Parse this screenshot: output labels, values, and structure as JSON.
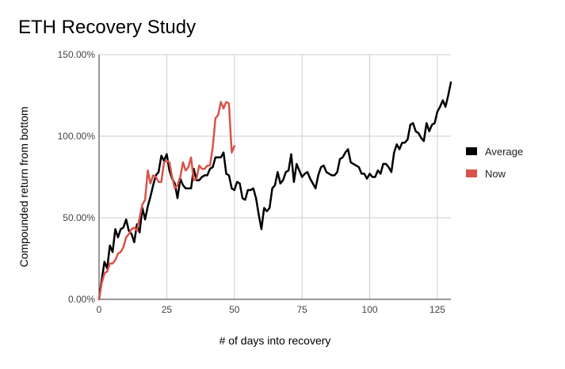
{
  "chart_data": {
    "type": "line",
    "title": "ETH Recovery Study",
    "xlabel": "# of days into recovery",
    "ylabel": "Compounded return from bottom",
    "xlim": [
      0,
      130
    ],
    "ylim": [
      0,
      150
    ],
    "x_ticks": [
      0,
      25,
      50,
      75,
      100,
      125
    ],
    "y_ticks": [
      0,
      50,
      100,
      150
    ],
    "y_tick_labels": [
      "0.00%",
      "50.00%",
      "100.00%",
      "150.00%"
    ],
    "grid": true,
    "legend_position": "right",
    "series": [
      {
        "name": "Average",
        "color": "#000000",
        "x": [
          0,
          1,
          2,
          3,
          4,
          5,
          6,
          7,
          8,
          9,
          10,
          11,
          12,
          13,
          14,
          15,
          16,
          17,
          18,
          19,
          20,
          21,
          22,
          23,
          24,
          25,
          26,
          27,
          28,
          29,
          30,
          31,
          32,
          33,
          34,
          35,
          36,
          37,
          38,
          39,
          40,
          41,
          42,
          43,
          44,
          45,
          46,
          47,
          48,
          49,
          50,
          51,
          52,
          53,
          54,
          55,
          56,
          57,
          58,
          59,
          60,
          61,
          62,
          63,
          64,
          65,
          66,
          67,
          68,
          69,
          70,
          71,
          72,
          73,
          74,
          75,
          76,
          77,
          78,
          79,
          80,
          81,
          82,
          83,
          84,
          85,
          86,
          87,
          88,
          89,
          90,
          91,
          92,
          93,
          94,
          95,
          96,
          97,
          98,
          99,
          100,
          101,
          102,
          103,
          104,
          105,
          106,
          107,
          108,
          109,
          110,
          111,
          112,
          113,
          114,
          115,
          116,
          117,
          118,
          119,
          120,
          121,
          122,
          123,
          124,
          125,
          126,
          127,
          128,
          129,
          130
        ],
        "values": [
          0,
          12,
          23,
          19,
          33,
          29,
          43,
          38,
          43,
          44,
          49,
          42,
          40,
          35,
          46,
          41,
          56,
          49,
          57,
          63,
          70,
          76,
          78,
          88,
          85,
          89,
          79,
          74,
          71,
          62,
          74,
          70,
          68,
          68,
          68,
          80,
          73,
          73,
          75,
          76,
          76,
          80,
          81,
          87,
          87,
          87,
          90,
          77,
          76,
          68,
          67,
          72,
          71,
          62,
          61,
          67,
          67,
          68,
          62,
          52,
          43,
          56,
          54,
          56,
          68,
          70,
          78,
          71,
          73,
          78,
          79,
          89,
          72,
          83,
          79,
          75,
          77,
          78,
          74,
          71,
          68,
          76,
          81,
          82,
          78,
          77,
          76,
          76,
          78,
          86,
          87,
          90,
          92,
          84,
          83,
          82,
          81,
          77,
          77,
          74,
          77,
          75,
          75,
          79,
          77,
          83,
          83,
          81,
          78,
          90,
          95,
          92,
          96,
          96,
          98,
          107,
          108,
          103,
          102,
          99,
          97,
          108,
          103,
          107,
          108,
          115,
          118,
          122,
          118,
          125,
          133
        ]
      },
      {
        "name": "Now",
        "color": "#d9534a",
        "x": [
          0,
          1,
          2,
          3,
          4,
          5,
          6,
          7,
          8,
          9,
          10,
          11,
          12,
          13,
          14,
          15,
          16,
          17,
          18,
          19,
          20,
          21,
          22,
          23,
          24,
          25,
          26,
          27,
          28,
          29,
          30,
          31,
          32,
          33,
          34,
          35,
          36,
          37,
          38,
          39,
          40,
          41,
          42,
          43,
          44,
          45,
          46,
          47,
          48,
          49,
          50
        ],
        "values": [
          0,
          10,
          16,
          17,
          22,
          22,
          24,
          28,
          29,
          32,
          38,
          40,
          43,
          44,
          42,
          50,
          58,
          61,
          79,
          71,
          76,
          75,
          72,
          72,
          84,
          85,
          84,
          75,
          68,
          70,
          75,
          84,
          79,
          81,
          87,
          73,
          74,
          82,
          80,
          80,
          82,
          82,
          93,
          111,
          113,
          121,
          117,
          121,
          120,
          90,
          94
        ]
      }
    ]
  }
}
